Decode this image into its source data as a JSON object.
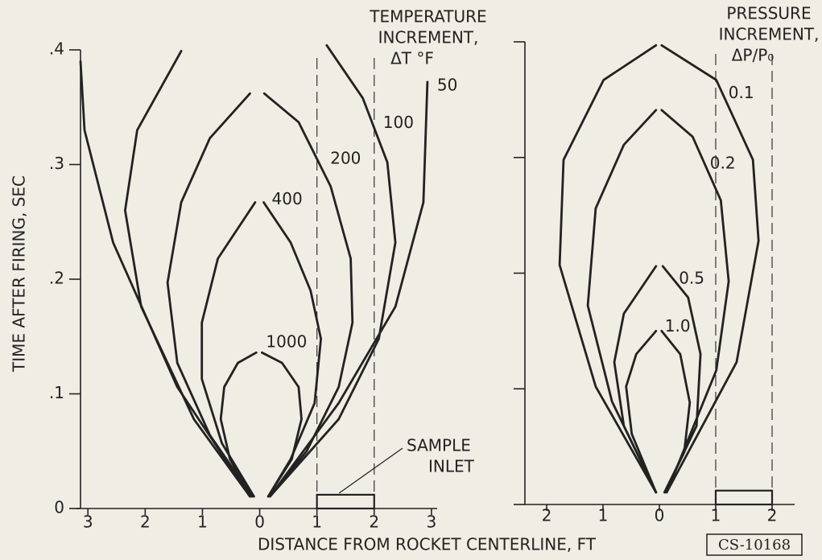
{
  "chart_data": [
    {
      "type": "line",
      "legend_title": [
        "TEMPERATURE",
        "INCREMENT,",
        "ΔT °F"
      ],
      "ylabel": "TIME AFTER FIRING, SEC",
      "xlabel": "DISTANCE FROM ROCKET CENTERLINE, FT",
      "xlim": [
        -3.2,
        3.1
      ],
      "ylim": [
        0,
        0.4
      ],
      "xticks": [
        {
          "value": -3,
          "label": "3"
        },
        {
          "value": -2,
          "label": "2"
        },
        {
          "value": -1,
          "label": "1"
        },
        0,
        1,
        2,
        3
      ],
      "yticks": [
        0,
        {
          "value": 0.1,
          "label": ".1"
        },
        {
          "value": 0.2,
          "label": ".2"
        },
        {
          "value": 0.3,
          "label": ".3"
        },
        {
          "value": 0.4,
          "label": ".4"
        }
      ],
      "show_ytick_labels": true,
      "dashed_x": [
        1,
        2
      ],
      "inlet": {
        "label": [
          "SAMPLE",
          "INLET"
        ],
        "xrange": [
          1,
          2
        ],
        "height": 0.012
      },
      "color": "#222222",
      "series": [
        {
          "name": "1000",
          "x": [
            -0.14,
            -0.52,
            -0.68,
            -0.62,
            -0.38,
            -0.06,
            null,
            0.04,
            0.39,
            0.68,
            0.73,
            0.56,
            0.15
          ],
          "values": [
            0.0105,
            0.043,
            0.078,
            0.106,
            0.127,
            0.136,
            null,
            0.136,
            0.127,
            0.106,
            0.078,
            0.043,
            0.0105
          ]
        },
        {
          "name": "400",
          "x": [
            -0.1,
            -0.66,
            -1.01,
            -1.01,
            -0.73,
            -0.08,
            null,
            0.07,
            0.54,
            0.89,
            1.07,
            0.96,
            0.54,
            0.15
          ],
          "values": [
            0.0105,
            0.057,
            0.113,
            0.162,
            0.218,
            0.267,
            null,
            0.267,
            0.232,
            0.19,
            0.148,
            0.092,
            0.043,
            0.0105
          ]
        },
        {
          "name": "200",
          "x": [
            -0.13,
            -0.87,
            -1.44,
            -1.61,
            -1.37,
            -0.87,
            -0.17,
            null,
            0.08,
            0.68,
            1.24,
            1.59,
            1.62,
            1.38,
            0.82,
            0.18
          ],
          "values": [
            0.0105,
            0.064,
            0.127,
            0.197,
            0.267,
            0.323,
            0.362,
            null,
            0.362,
            0.337,
            0.281,
            0.218,
            0.162,
            0.106,
            0.05,
            0.0105
          ]
        },
        {
          "name": "100",
          "x": [
            -0.17,
            -1.15,
            -2.07,
            -2.35,
            -2.14,
            -1.37,
            null,
            1.17,
            1.8,
            2.23,
            2.37,
            2.08,
            1.38,
            0.18
          ],
          "values": [
            0.0105,
            0.078,
            0.176,
            0.26,
            0.33,
            0.399,
            null,
            0.404,
            0.358,
            0.302,
            0.232,
            0.148,
            0.078,
            0.0105
          ]
        },
        {
          "name": "50",
          "x": [
            -0.17,
            -1.44,
            -2.56,
            -3.06,
            -3.13,
            null,
            2.93,
            2.86,
            2.37,
            1.38,
            0.18
          ],
          "values": [
            0.0105,
            0.106,
            0.232,
            0.33,
            0.39,
            null,
            0.372,
            0.267,
            0.176,
            0.092,
            0.0105
          ]
        }
      ]
    },
    {
      "type": "line",
      "legend_title": [
        "PRESSURE",
        "INCREMENT,",
        "ΔP/P₀"
      ],
      "xlim": [
        -2.4,
        2.4
      ],
      "ylim": [
        0,
        0.4
      ],
      "xticks": [
        {
          "value": -2,
          "label": "2"
        },
        {
          "value": -1,
          "label": "1"
        },
        0,
        1,
        2
      ],
      "yticks": [
        0,
        0.1,
        0.2,
        0.3,
        0.4
      ],
      "show_ytick_labels": false,
      "dashed_x": [
        1,
        2
      ],
      "inlet": {
        "xrange": [
          1,
          2
        ],
        "height": 0.012
      },
      "color": "#222222",
      "series": [
        {
          "name": "1.0",
          "x": [
            -0.06,
            -0.49,
            -0.59,
            -0.41,
            -0.06,
            null,
            0.04,
            0.37,
            0.54,
            0.44,
            0.09
          ],
          "values": [
            0.0105,
            0.061,
            0.102,
            0.13,
            0.15,
            null,
            0.15,
            0.13,
            0.088,
            0.045,
            0.0105
          ]
        },
        {
          "name": "0.5",
          "x": [
            -0.06,
            -0.63,
            -0.8,
            -0.63,
            -0.06,
            null,
            0.06,
            0.51,
            0.73,
            0.66,
            0.1
          ],
          "values": [
            0.0105,
            0.068,
            0.123,
            0.165,
            0.206,
            null,
            0.206,
            0.179,
            0.13,
            0.068,
            0.0105
          ]
        },
        {
          "name": "0.2",
          "x": [
            -0.06,
            -0.84,
            -1.27,
            -1.13,
            -0.63,
            -0.06,
            null,
            0.04,
            0.59,
            1.09,
            1.23,
            1.01,
            0.13
          ],
          "values": [
            0.0105,
            0.089,
            0.172,
            0.256,
            0.311,
            0.341,
            null,
            0.341,
            0.318,
            0.263,
            0.193,
            0.116,
            0.0105
          ]
        },
        {
          "name": "0.1",
          "x": [
            -0.06,
            -1.13,
            -1.77,
            -1.7,
            -0.99,
            -0.06,
            null,
            0.04,
            1.01,
            1.66,
            1.76,
            1.37,
            0.13
          ],
          "values": [
            0.0105,
            0.102,
            0.207,
            0.298,
            0.367,
            0.397,
            null,
            0.397,
            0.367,
            0.298,
            0.228,
            0.123,
            0.0105
          ]
        }
      ]
    }
  ],
  "figure_id": "CS-10168"
}
